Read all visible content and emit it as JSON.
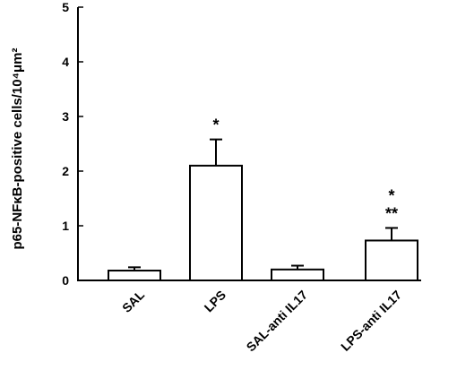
{
  "chart_data": {
    "type": "bar",
    "categories": [
      "SAL",
      "LPS",
      "SAL-anti IL17",
      "LPS-anti IL17"
    ],
    "values": [
      0.18,
      2.1,
      0.2,
      0.73
    ],
    "errors": [
      0.06,
      0.48,
      0.07,
      0.23
    ],
    "annotations": [
      [],
      [
        "*"
      ],
      [],
      [
        "*",
        "**"
      ]
    ],
    "ylabel": "p65-NFκB-positive cells/10⁴μm²",
    "ylim": [
      0,
      5
    ],
    "yticks": [
      "0",
      "1",
      "2",
      "3",
      "4",
      "5"
    ],
    "grid": false,
    "legend": "none"
  }
}
